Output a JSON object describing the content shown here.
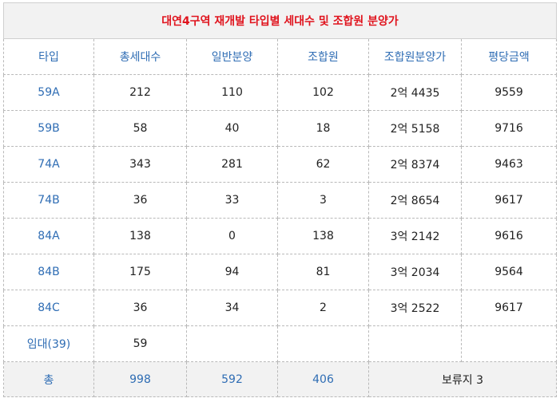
{
  "title": "대연4구역 재개발 타입별 세대수 및 조합원 분양가",
  "columns": [
    "타입",
    "총세대수",
    "일반분양",
    "조합원",
    "조합원분양가",
    "평당금액"
  ],
  "rows": [
    {
      "type": "59A",
      "total": "212",
      "general": "110",
      "member": "102",
      "member_price": "2억 4435",
      "per_pyeong": "9559"
    },
    {
      "type": "59B",
      "total": "58",
      "general": "40",
      "member": "18",
      "member_price": "2억 5158",
      "per_pyeong": "9716"
    },
    {
      "type": "74A",
      "total": "343",
      "general": "281",
      "member": "62",
      "member_price": "2억 8374",
      "per_pyeong": "9463"
    },
    {
      "type": "74B",
      "total": "36",
      "general": "33",
      "member": "3",
      "member_price": "2억 8654",
      "per_pyeong": "9617"
    },
    {
      "type": "84A",
      "total": "138",
      "general": "0",
      "member": "138",
      "member_price": "3억 2142",
      "per_pyeong": "9616"
    },
    {
      "type": "84B",
      "total": "175",
      "general": "94",
      "member": "81",
      "member_price": "3억 2034",
      "per_pyeong": "9564"
    },
    {
      "type": "84C",
      "total": "36",
      "general": "34",
      "member": "2",
      "member_price": "3억 2522",
      "per_pyeong": "9617"
    },
    {
      "type": "임대(39)",
      "total": "59",
      "general": "",
      "member": "",
      "member_price": "",
      "per_pyeong": ""
    }
  ],
  "totals": {
    "label": "총",
    "total": "998",
    "general": "592",
    "member": "406",
    "remain": "보류지 3"
  }
}
